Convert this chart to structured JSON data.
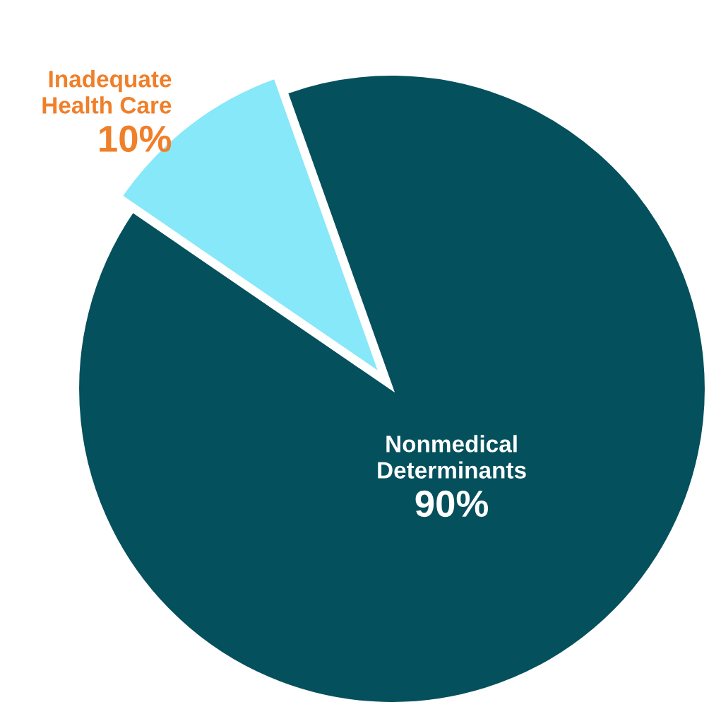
{
  "chart_data": {
    "type": "pie",
    "categories": [
      "Inadequate\nHealth Care",
      "Nonmedical\nDeterminants"
    ],
    "values": [
      10,
      90
    ],
    "colors": [
      "#86e8f8",
      "#04505c"
    ],
    "value_labels": [
      "10%",
      "90%"
    ],
    "legend": false
  }
}
